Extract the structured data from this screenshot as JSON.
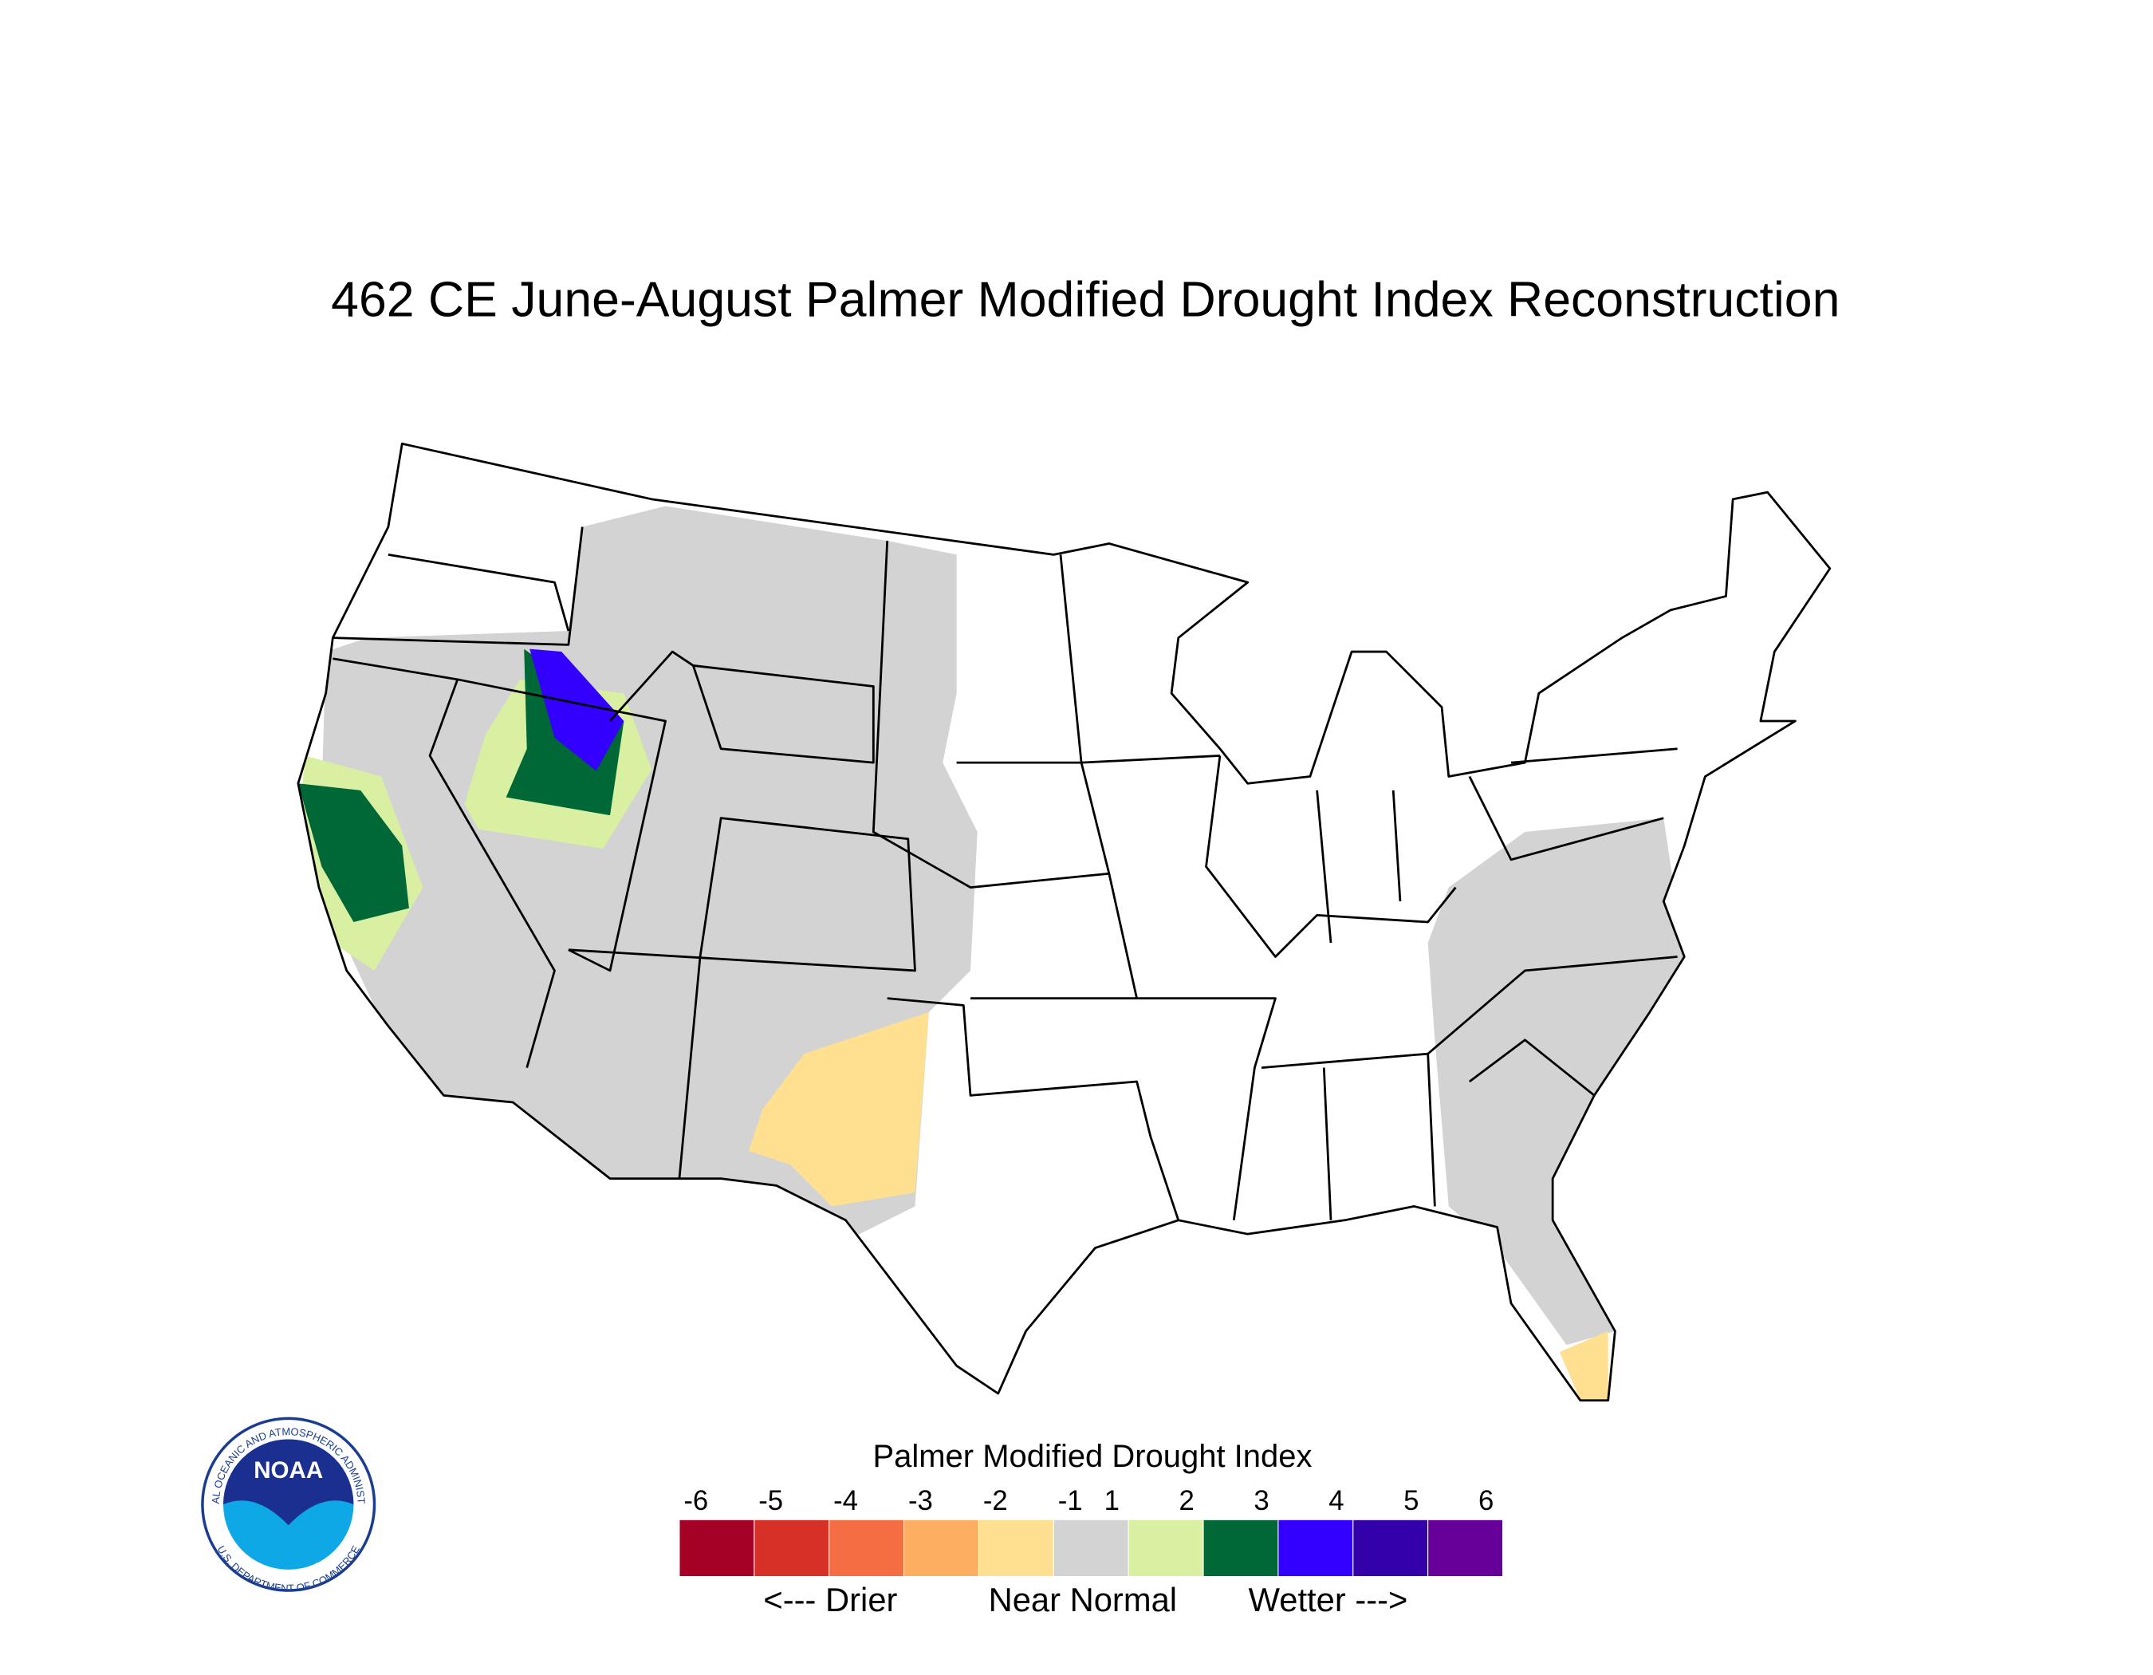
{
  "title": "462 CE  June-August  Palmer Modified Drought Index Reconstruction",
  "legend": {
    "title": "Palmer Modified Drought Index",
    "ticks": [
      -6,
      -5,
      -4,
      -3,
      -2,
      -1,
      1,
      2,
      3,
      4,
      5,
      6
    ],
    "colors": [
      "#a50026",
      "#d73027",
      "#f46d43",
      "#fdae61",
      "#fee090",
      "#d3d3d3",
      "#d9f0a3",
      "#006837",
      "#3300ff",
      "#3300aa",
      "#660099"
    ],
    "labels": [
      "<--- Drier",
      "Near Normal",
      "Wetter --->"
    ]
  },
  "logo": {
    "name": "NOAA",
    "ring_top": "NATIONAL OCEANIC AND ATMOSPHERIC ADMINISTRATION",
    "ring_bottom": "U.S. DEPARTMENT OF COMMERCE"
  }
}
